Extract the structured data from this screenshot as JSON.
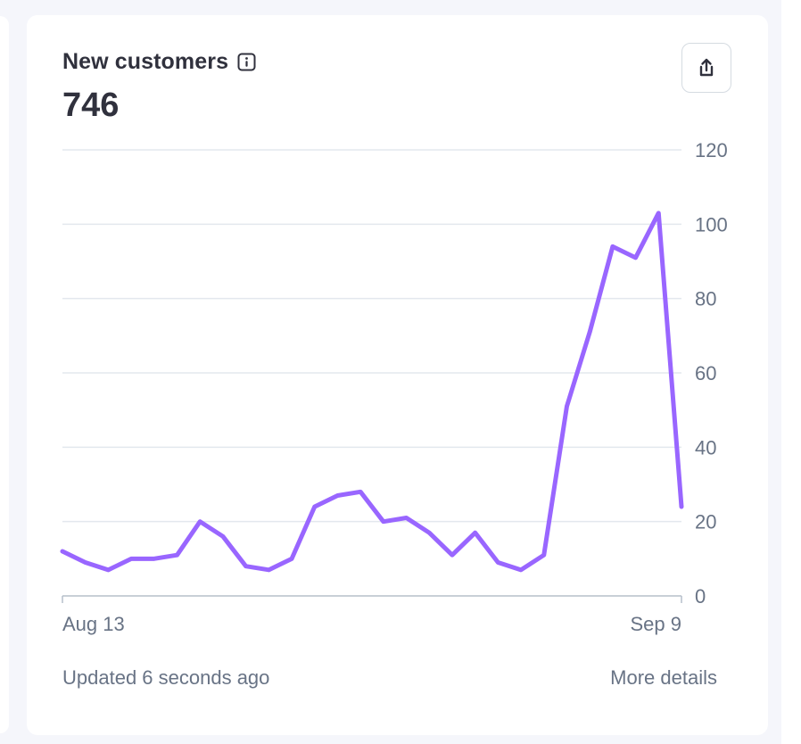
{
  "card": {
    "title": "New customers",
    "info_icon": "info-icon",
    "total": "746",
    "share_icon": "share-icon",
    "updated_text": "Updated 6 seconds ago",
    "more_details_label": "More details"
  },
  "colors": {
    "line": "#9966ff",
    "grid": "#e3e8ee",
    "axis": "#b6bfca",
    "text": "#30313d",
    "muted": "#687385"
  },
  "chart_data": {
    "type": "line",
    "xlabel": "",
    "ylabel": "",
    "x_start_label": "Aug 13",
    "x_end_label": "Sep 9",
    "y_ticks": [
      0,
      20,
      40,
      60,
      80,
      100,
      120
    ],
    "ylim": [
      0,
      120
    ],
    "grid": true,
    "y_axis_side": "right",
    "series": [
      {
        "values": [
          12,
          9,
          7,
          10,
          10,
          11,
          20,
          16,
          8,
          7,
          10,
          24,
          27,
          28,
          20,
          21,
          17,
          11,
          17,
          9,
          7,
          11,
          51,
          71,
          94,
          91,
          103,
          24
        ]
      }
    ]
  }
}
